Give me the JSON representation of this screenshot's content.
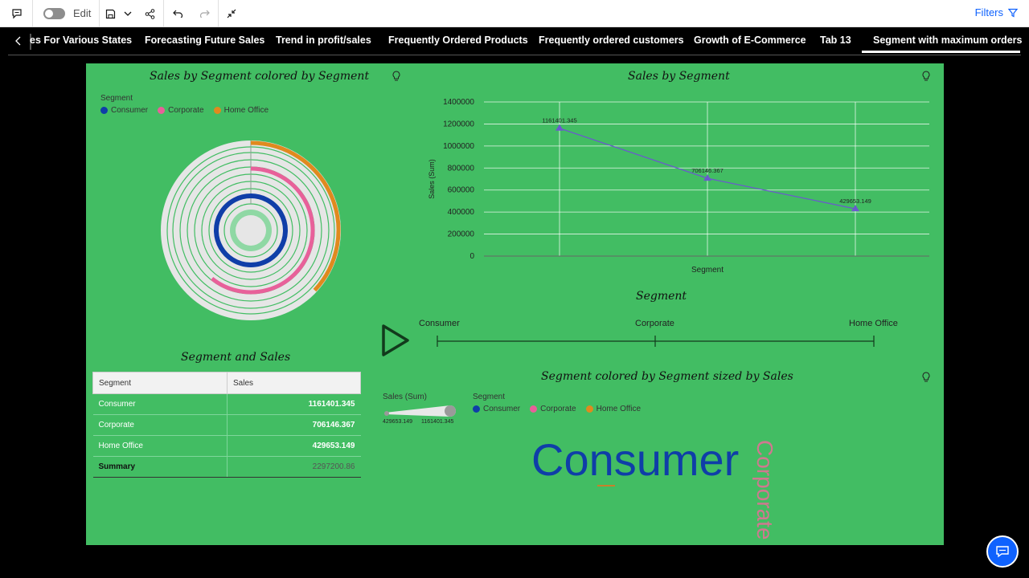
{
  "toolbar": {
    "edit_label": "Edit",
    "filters_label": "Filters"
  },
  "tabs": [
    "es For Various States",
    "Forecasting Future Sales",
    "Trend in profit/sales",
    "Frequently Ordered Products",
    "Frequently ordered customers",
    "Growth of E-Commerce",
    "Tab 13",
    "Segment with maximum orders"
  ],
  "active_tab": "Segment with maximum orders",
  "colors": {
    "canvas": "#42bd63",
    "consumer": "#0f3ea8",
    "corporate": "#e8609a",
    "home_office": "#e08a1e",
    "line": "#6a5acd",
    "accent": "#0f62fe"
  },
  "widgets": {
    "radial": {
      "title": "Sales by Segment colored by Segment",
      "legend_title": "Segment",
      "legend": [
        "Consumer",
        "Corporate",
        "Home Office"
      ]
    },
    "line": {
      "title": "Sales by Segment"
    },
    "slider": {
      "title": "Segment",
      "labels": [
        "Consumer",
        "Corporate",
        "Home Office"
      ]
    },
    "table": {
      "title": "Segment and Sales",
      "headers": [
        "Segment",
        "Sales"
      ],
      "rows": [
        {
          "segment": "Consumer",
          "sales": "1161401.345"
        },
        {
          "segment": "Corporate",
          "sales": "706146.367"
        },
        {
          "segment": "Home Office",
          "sales": "429653.149"
        }
      ],
      "summary": {
        "label": "Summary",
        "value": "2297200.86"
      }
    },
    "wordcloud": {
      "title": "Segment colored by Segment sized by Sales",
      "size_legend_title": "Sales (Sum)",
      "size_min": "429653.149",
      "size_max": "1161401.345",
      "legend_title": "Segment",
      "legend": [
        "Consumer",
        "Corporate",
        "Home Office"
      ],
      "words": [
        "Consumer",
        "Corporate"
      ]
    }
  },
  "chart_data": [
    {
      "type": "pie",
      "title": "Sales by Segment colored by Segment",
      "categories": [
        "Consumer",
        "Corporate",
        "Home Office"
      ],
      "values": [
        1161401.345,
        706146.367,
        429653.149
      ]
    },
    {
      "type": "line",
      "title": "Sales by Segment",
      "xlabel": "Segment",
      "ylabel": "Sales (Sum)",
      "categories": [
        "Consumer",
        "Corporate",
        "Home Office"
      ],
      "values": [
        1161401.345,
        706146.367,
        429653.149
      ],
      "data_labels": [
        "1161401.345",
        "706146.367",
        "429653.149"
      ],
      "yticks": [
        "0",
        "200000",
        "400000",
        "600000",
        "800000",
        "1000000",
        "1200000",
        "1400000"
      ],
      "ylim": [
        0,
        1400000
      ],
      "grid": true
    }
  ]
}
